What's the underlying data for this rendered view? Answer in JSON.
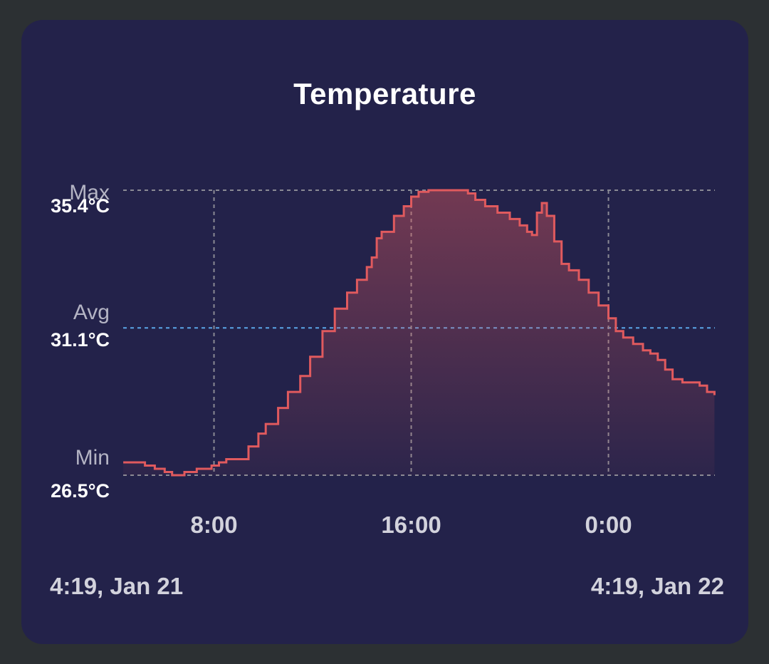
{
  "chart_data": {
    "type": "area",
    "title": "Temperature",
    "unit": "°C",
    "stats": {
      "max_label": "Max",
      "max_value": "35.4°C",
      "avg_label": "Avg",
      "avg_value": "31.1°C",
      "min_label": "Min",
      "min_value": "26.5°C",
      "max": 35.4,
      "avg": 31.1,
      "min": 26.5
    },
    "x_range": {
      "start_hour": 4.3167,
      "end_hour": 28.3167
    },
    "x_ticks": [
      {
        "hour": 8,
        "label": "8:00"
      },
      {
        "hour": 16,
        "label": "16:00"
      },
      {
        "hour": 24,
        "label": "0:00"
      }
    ],
    "range_start_label": "4:19, Jan 21",
    "range_end_label": "4:19, Jan 22",
    "grid": true,
    "series": [
      {
        "line_color": "#e05a5e",
        "fill_color": "#e05a5e",
        "x_hours": [
          4.32,
          4.8,
          5.2,
          5.6,
          6.0,
          6.3,
          6.5,
          6.8,
          7.0,
          7.3,
          7.6,
          7.9,
          8.2,
          8.5,
          8.8,
          9.1,
          9.4,
          9.8,
          10.1,
          10.6,
          11.0,
          11.5,
          11.9,
          12.4,
          12.9,
          13.4,
          13.8,
          14.2,
          14.4,
          14.6,
          14.8,
          15.3,
          15.7,
          16.0,
          16.3,
          16.7,
          17.1,
          17.5,
          18.0,
          18.3,
          18.6,
          19.0,
          19.5,
          20.0,
          20.4,
          20.7,
          20.9,
          21.1,
          21.3,
          21.5,
          21.8,
          22.1,
          22.4,
          22.8,
          23.2,
          23.6,
          24.0,
          24.3,
          24.6,
          25.0,
          25.4,
          25.7,
          26.0,
          26.3,
          26.6,
          27.0,
          27.3,
          27.7,
          28.0,
          28.3
        ],
        "y_celsius": [
          26.9,
          26.9,
          26.8,
          26.7,
          26.6,
          26.5,
          26.5,
          26.6,
          26.6,
          26.7,
          26.7,
          26.8,
          26.9,
          27.0,
          27.0,
          27.0,
          27.4,
          27.8,
          28.1,
          28.6,
          29.1,
          29.6,
          30.2,
          31.0,
          31.7,
          32.2,
          32.6,
          33.0,
          33.3,
          33.9,
          34.1,
          34.6,
          34.9,
          35.2,
          35.35,
          35.4,
          35.4,
          35.4,
          35.4,
          35.3,
          35.1,
          34.9,
          34.7,
          34.5,
          34.3,
          34.1,
          34.0,
          34.7,
          35.0,
          34.6,
          33.8,
          33.1,
          32.9,
          32.6,
          32.2,
          31.8,
          31.4,
          31.0,
          30.8,
          30.6,
          30.4,
          30.3,
          30.1,
          29.8,
          29.5,
          29.4,
          29.4,
          29.3,
          29.1,
          29.0
        ]
      }
    ]
  },
  "colors": {
    "card_background": "#23224a",
    "page_background": "#2c3033",
    "avg_line": "#5aa6e8",
    "grid_line": "#8a8a94"
  }
}
